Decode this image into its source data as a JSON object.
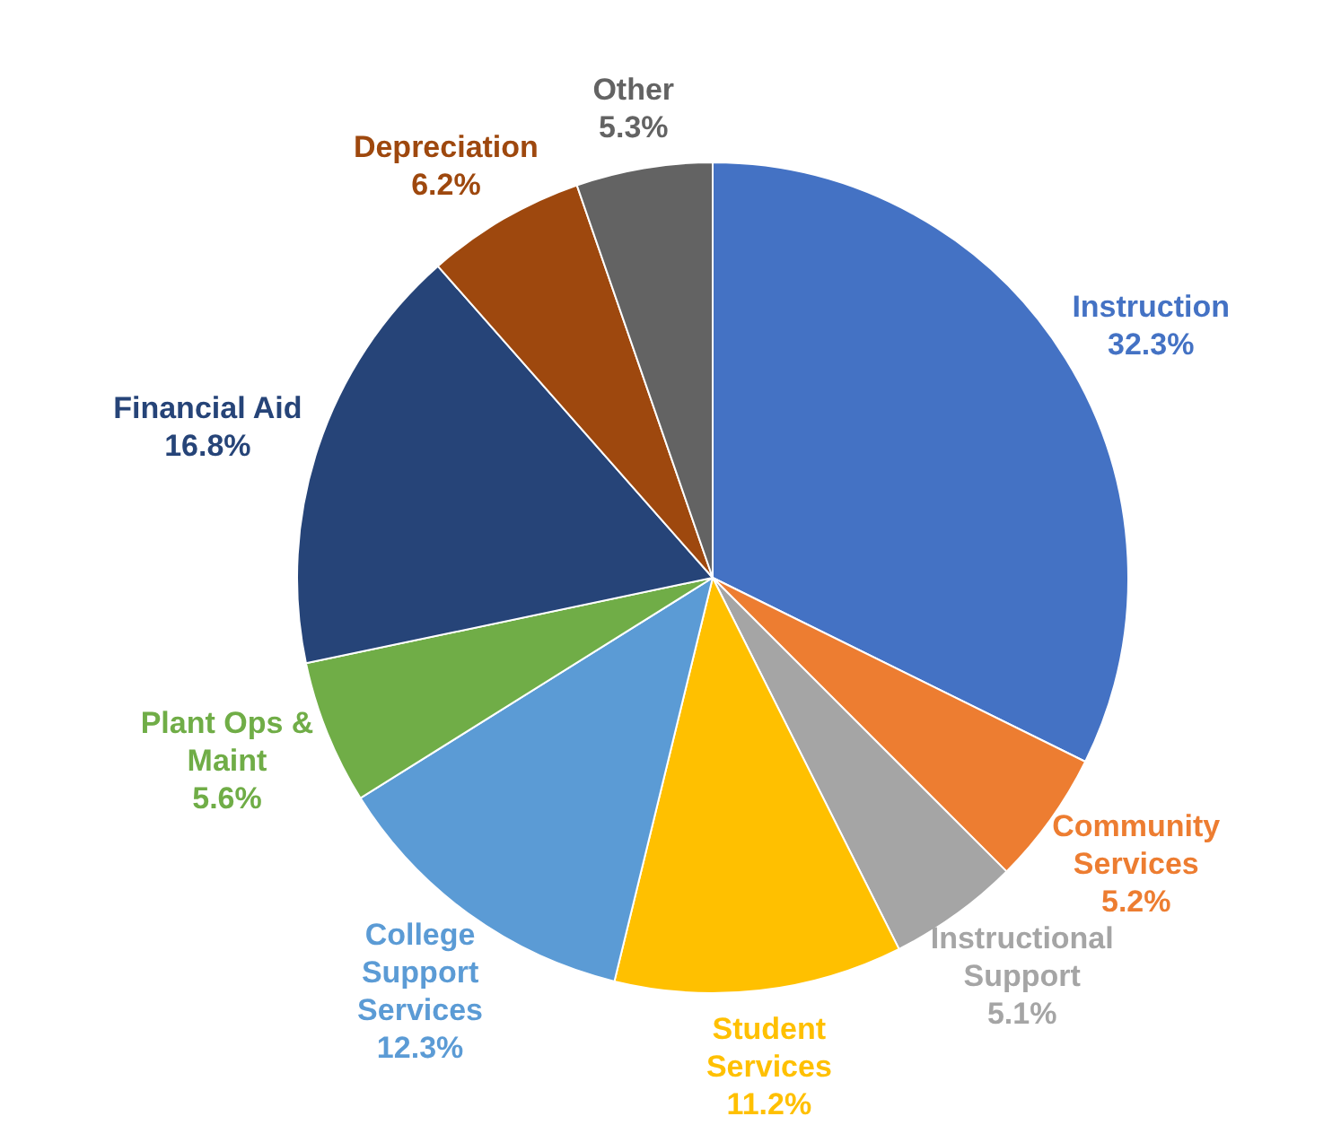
{
  "chart_data": {
    "type": "pie",
    "categories": [
      "Instruction",
      "Community Services",
      "Instructional Support",
      "Student Services",
      "College Support Services",
      "Plant Ops & Maint",
      "Financial Aid",
      "Depreciation",
      "Other"
    ],
    "values": [
      32.3,
      5.2,
      5.1,
      11.2,
      12.3,
      5.6,
      16.8,
      6.2,
      5.3
    ],
    "colors": [
      "#4472c4",
      "#ed7d31",
      "#a5a5a5",
      "#ffc000",
      "#5b9bd5",
      "#70ad47",
      "#264478",
      "#9e480e",
      "#636363"
    ],
    "value_labels": [
      "32.3%",
      "5.2%",
      "5.1%",
      "11.2%",
      "12.3%",
      "5.6%",
      "16.8%",
      "6.2%",
      "5.3%"
    ]
  }
}
